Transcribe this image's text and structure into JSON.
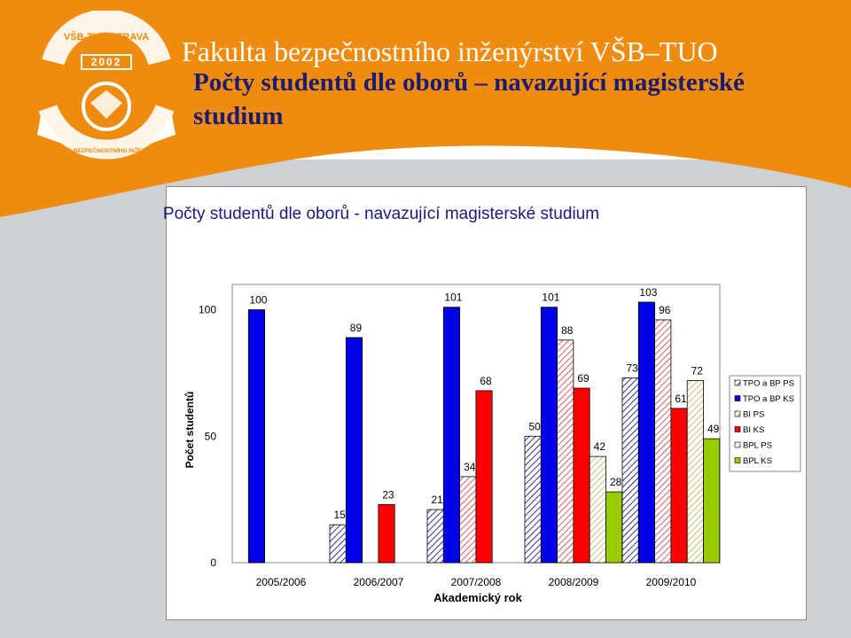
{
  "header": {
    "faculty": "Fakulta bezpečnostního inženýrství VŠB–TUO",
    "title": "Počty studentů dle oborů – navazující magisterské studium",
    "logo": {
      "top_text": "VŠB-TU OSTRAVA",
      "year": "2002",
      "bottom_text": "FAKULTA BEZPEČNOSTNÍHO INŽENÝRSTVÍ"
    }
  },
  "colors": {
    "orange": "#ef8c10",
    "navy": "#1c1c6e",
    "blue": "#0000e6",
    "red": "#ff0000",
    "green": "#99cc00",
    "olive": "#c8c860"
  },
  "chart_data": {
    "type": "bar",
    "title": "Počty studentů dle oborů - navazující magisterské studium",
    "xlabel": "Akademický rok",
    "ylabel": "Počet studentů",
    "ylim": [
      0,
      110
    ],
    "yticks": [
      0,
      50,
      100
    ],
    "categories": [
      "2005/2006",
      "2006/2007",
      "2007/2008",
      "2008/2009",
      "2009/2010"
    ],
    "legend_position": "right",
    "series": [
      {
        "name": "TPO a BP PS",
        "values": [
          null,
          15,
          21,
          50,
          73
        ]
      },
      {
        "name": "TPO a BP KS",
        "values": [
          100,
          89,
          101,
          101,
          103
        ]
      },
      {
        "name": "BI PS",
        "values": [
          null,
          null,
          34,
          88,
          96
        ]
      },
      {
        "name": "BI KS",
        "values": [
          null,
          23,
          68,
          69,
          61
        ]
      },
      {
        "name": "BPL PS",
        "values": [
          null,
          null,
          null,
          42,
          72
        ]
      },
      {
        "name": "BPL KS",
        "values": [
          null,
          null,
          null,
          28,
          49
        ]
      }
    ]
  }
}
